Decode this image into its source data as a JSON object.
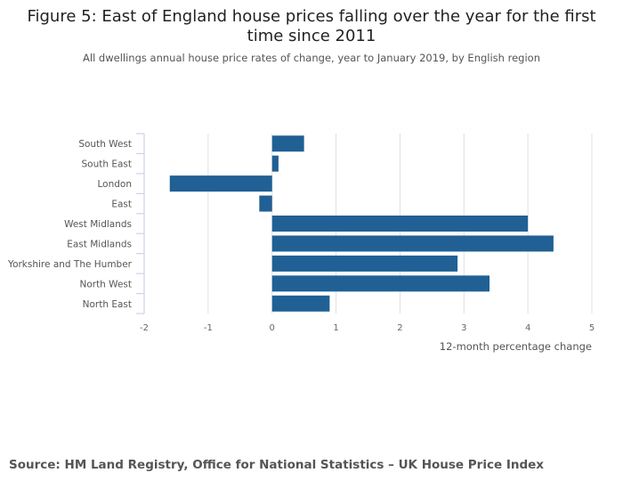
{
  "chart_data": {
    "type": "bar",
    "orientation": "horizontal",
    "title": "Figure 5: East of England house prices falling over the year for the first time since 2011",
    "subtitle": "All dwellings annual house price rates of change, year to January 2019, by English region",
    "categories": [
      "South West",
      "South East",
      "London",
      "East",
      "West Midlands",
      "East Midlands",
      "Yorkshire and The Humber",
      "North West",
      "North East"
    ],
    "values": [
      0.5,
      0.1,
      -1.6,
      -0.2,
      4.0,
      4.4,
      2.9,
      3.4,
      0.9
    ],
    "xlabel": "12-month percentage change",
    "xlim": [
      -2,
      5
    ],
    "xticks": [
      "-2",
      "-1",
      "0",
      "1",
      "2",
      "3",
      "4",
      "5"
    ],
    "grid": true,
    "bar_color": "#206095"
  },
  "source": "Source: HM Land Registry, Office for National Statistics – UK House Price Index"
}
